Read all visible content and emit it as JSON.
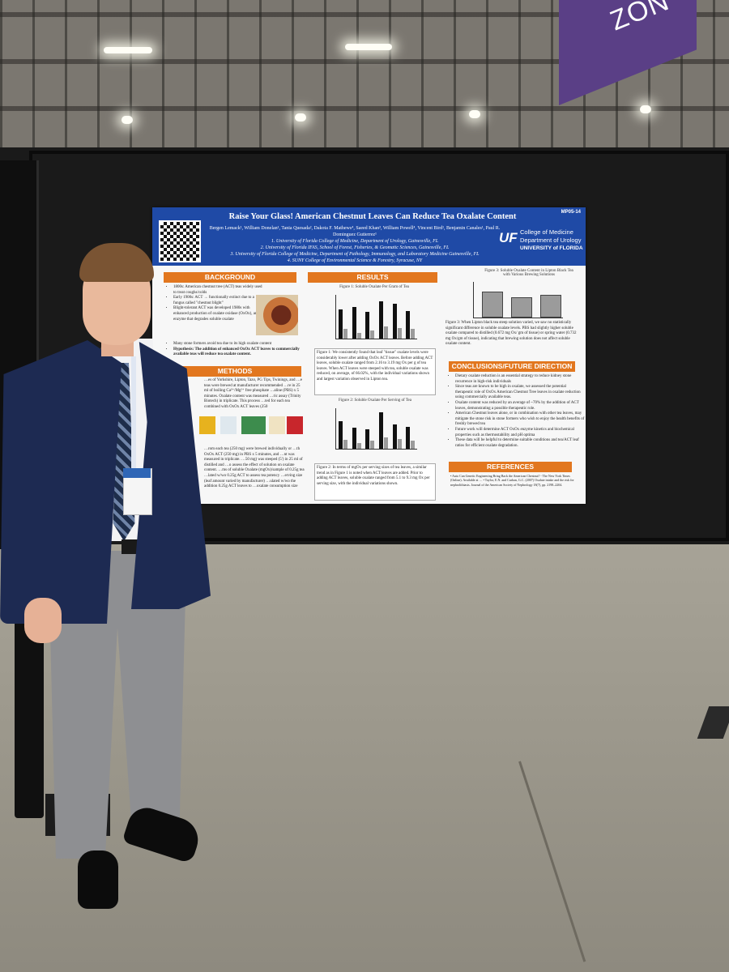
{
  "banner": {
    "text": "ZON"
  },
  "poster": {
    "id": "MP05-14",
    "title": "Raise Your Glass! American Chestnut Leaves Can Reduce Tea Oxalate Content",
    "authors": "Bergen Lemack¹, William Donelan¹, Tania Quesada², Dakota F. Mathews⁴, Saeed Khan³, William Powell⁴, Vincent Bird¹, Benjamin Canales¹, Paul R. Dominguez Gutierrez¹",
    "affiliations": [
      "1. University of Florida College of Medicine, Department of Urology, Gainesville, FL",
      "2. University of Florida IFAS, School of Forest, Fisheries, & Geomatic Sciences, Gainesville, FL",
      "3. University of Florida College of Medicine, Department of Pathology, Immunology, and Laboratory Medicine Gainesville, FL",
      "4. SUNY College of Environmental Science & Forestry, Syracuse, NY"
    ],
    "institution": {
      "logo": "UF",
      "lines": [
        "College of Medicine",
        "Department of Urology",
        "UNIVERSITY of FLORIDA"
      ]
    },
    "sections": {
      "background": "BACKGROUND",
      "methods": "METHODS",
      "results": "RESULTS",
      "conclusions": "CONCLUSIONS/FUTURE DIRECTION",
      "references": "REFERENCES"
    },
    "background_bullets": [
      "1800s: American chestnut tree (ACT) teas widely used to treat coughs/colds",
      "Early 1900s: ACT → functionally extinct due to a fungus called \"chestnut blight\"",
      "Blight-tolerant ACT was developed 1980s with enhanced production of oxalate oxidase (OxOx), an enzyme that degrades soluble oxalate",
      "Many stone formers avoid tea due to its high oxalate content",
      "Hypothesis: The addition of enhanced OxOx ACT leaves to commercially available teas will reduce tea oxalate content."
    ],
    "methods_text": "…es of Yorkshire, Lipton, Tazo, PG Tips, Twinings, and …e teas were brewed at manufacturer recommended …re in 25 ml of boiling Ca²⁺/Mg²⁺ free phosphate …aline (PBS) x 5 minutes. Oxalate content was measured …ric assay (Trinity Biotech) in triplicate. This process …ted for each tea combined with OxOx ACT leaves (250",
    "methods_text_2": "…rom each tea (250 mg) were brewed individually or …th OxOx ACT (250 mg) in PBS x 5 minutes, and …nt was measured in triplicate. …50 mg) was steeped (5') in 25 ml of distilled and …o assess the effect of solution on oxalate content. …ms of soluble Oxalate (mgOx)/sample of 0.25g tea …lated w/wo 0.25g ACT to assess tea potency …erving size (leaf amount varied by manufacturer) …ulated w/wo the addition 0.25g ACT leaves to …oxalate consumption size",
    "figure1_title": "Figure 1: Soluble Oxalate Per Gram of Tea",
    "figure1_caption": "Figure 1: We consistently found that leaf \"tissue\" oxalate levels were considerably lower after adding OxOx ACT leaves. Before adding ACT leaves, soluble oxalate ranged from 2.16 to 3.19 mg Ox per g of tea leaves. When ACT leaves were steeped with tea, soluble oxalate was reduced, on average, of 66.02%, with the individual variations shown and largest variation observed in Lipton tea.",
    "figure2_title": "Figure 2: Soluble Oxalate Per Serving of Tea",
    "figure2_caption": "Figure 2: In terms of mgOx per serving sizes of tea leaves, a similar trend as in Figure 1 is noted when ACT leaves are added. Prior to adding ACT leaves, soluble oxalate ranged from 5.1 to 9.3 mg Ox per serving size, with the individual variations shown.",
    "figure3_title": "Figure 3: Soluble Oxalate Content in Lipton Black Tea with Various Brewing Solutions",
    "figure3_caption": "Figure 3: When Lipton black tea steep solution varied, we saw no statistically significant difference in soluble oxalate levels. PBS had slightly higher soluble oxalate compared to distilled (0.672 mg Ox/ gm of tissue) or spring water (0.732 mg Ox/gm of tissue), indicating that brewing solution does not affect soluble oxalate content.",
    "conclusion_bullets": [
      "Dietary oxalate reduction is an essential strategy to reduce kidney stone recurrence in high-risk individuals",
      "Since teas are known to be high in oxalate, we assessed the potential therapeutic role of OxOx American Chestnut Tree leaves in oxalate reduction using commercially available teas.",
      "Oxalate content was reduced by an average of ~70% by the addition of ACT leaves, demonstrating a possible therapeutic role.",
      "American Chestnut leaves alone, or in combination with other tea leaves, may mitigate the stone risk in stone formers who wish to enjoy the health benefits of freshly brewed tea",
      "Future work will determine ACT OxOx enzyme kinetics and biochemical properties such as thermostability and pH optima",
      "These data will be helpful to determine suitable conditions and tea/ACT leaf ratios for efficient oxalate degradation."
    ],
    "references_text": "• Auto Can Genetic Engineering Bring Back the American Chestnut? - The New York Times (Online). Available at … • Taylor, E.N. and Curhan, G.C. (2007) Oxalate intake and the risk for nephrolithiasis. Journal of the American Society of Nephrology 18(7), pp. 2198–2204.",
    "tea_categories": [
      "Yorkshire",
      "Lipton",
      "Tazo",
      "PG Tips",
      "Twinings",
      "Greenable"
    ],
    "fig1": {
      "tea": [
        2.4,
        2.6,
        2.2,
        3.1,
        2.9,
        2.3
      ],
      "act": [
        0.8,
        0.5,
        0.7,
        1.0,
        0.9,
        0.8
      ]
    },
    "fig2": {
      "tea": [
        7.0,
        5.5,
        5.1,
        9.3,
        6.2,
        5.6
      ],
      "act": [
        2.2,
        1.5,
        2.0,
        3.0,
        2.4,
        2.1
      ]
    },
    "fig3": {
      "values": [
        0.85,
        0.67,
        0.73
      ]
    }
  }
}
